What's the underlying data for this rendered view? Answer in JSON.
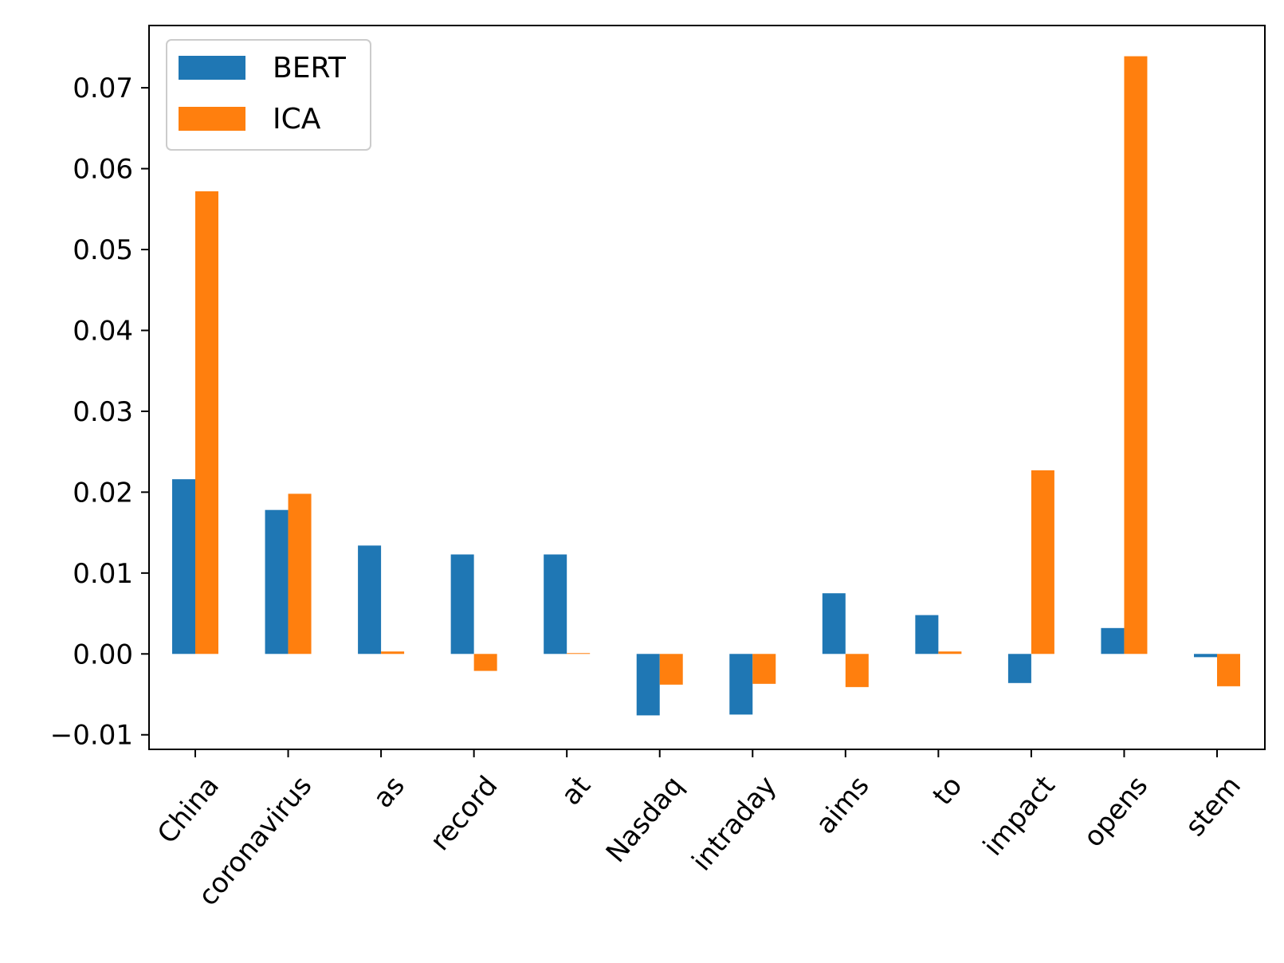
{
  "chart_data": {
    "type": "bar",
    "title": "",
    "xlabel": "",
    "ylabel": "",
    "categories": [
      "China",
      "coronavirus",
      "as",
      "record",
      "at",
      "Nasdaq",
      "intraday",
      "aims",
      "to",
      "impact",
      "opens",
      "stem"
    ],
    "series": [
      {
        "name": "BERT",
        "color": "#1f77b4",
        "values": [
          0.0216,
          0.0178,
          0.0134,
          0.0123,
          0.0123,
          -0.0076,
          -0.0075,
          0.0075,
          0.0048,
          -0.0036,
          0.0032,
          -0.0004
        ]
      },
      {
        "name": "ICA",
        "color": "#ff7f0e",
        "values": [
          0.0572,
          0.0198,
          0.0003,
          -0.0021,
          0.0001,
          -0.0038,
          -0.0037,
          -0.0041,
          0.0003,
          0.0227,
          0.0739,
          -0.004
        ]
      }
    ],
    "ylim": [
      -0.0118,
      0.0777
    ],
    "yticks": [
      -0.01,
      0.0,
      0.01,
      0.02,
      0.03,
      0.04,
      0.05,
      0.06,
      0.07
    ],
    "ytick_labels": [
      "−0.01",
      "0.00",
      "0.01",
      "0.02",
      "0.03",
      "0.04",
      "0.05",
      "0.06",
      "0.07"
    ],
    "grid": false,
    "legend_position": "top-left"
  }
}
